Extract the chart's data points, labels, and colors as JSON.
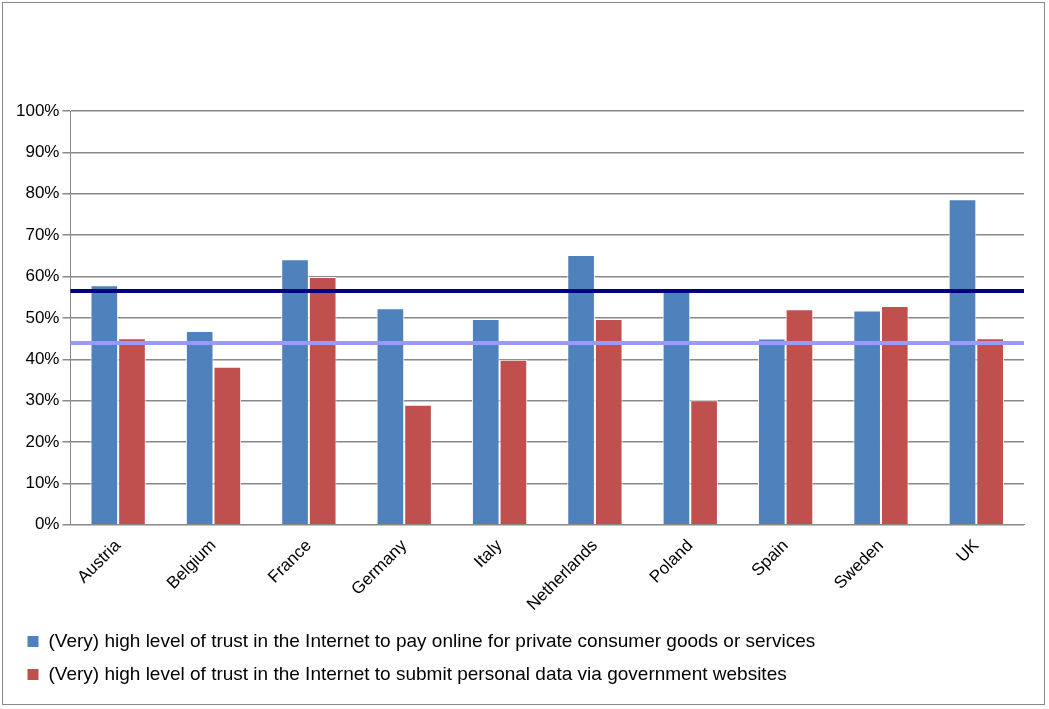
{
  "chart_data": {
    "type": "bar",
    "categories": [
      "Austria",
      "Belgium",
      "France",
      "Germany",
      "Italy",
      "Netherlands",
      "Poland",
      "Spain",
      "Sweden",
      "UK"
    ],
    "series": [
      {
        "name": "(Very) high level of trust in the Internet to pay online for private consumer goods or services",
        "color": "#4f81bd",
        "values": [
          57.9,
          46.8,
          64.2,
          52.3,
          49.7,
          65.2,
          56.5,
          45.0,
          51.8,
          78.7
        ]
      },
      {
        "name": "(Very) high level of trust in the Internet to submit personal data via government websites",
        "color": "#c0504d",
        "values": [
          45.1,
          38.2,
          59.9,
          29.0,
          39.9,
          49.7,
          30.1,
          52.1,
          52.9,
          45.1
        ]
      }
    ],
    "ylim": [
      0,
      100
    ],
    "yticks": [
      {
        "value": 0,
        "label": "0%"
      },
      {
        "value": 10,
        "label": "10%"
      },
      {
        "value": 20,
        "label": "20%"
      },
      {
        "value": 30,
        "label": "30%"
      },
      {
        "value": 40,
        "label": "40%"
      },
      {
        "value": 50,
        "label": "50%"
      },
      {
        "value": 60,
        "label": "60%"
      },
      {
        "value": 70,
        "label": "70%"
      },
      {
        "value": 80,
        "label": "80%"
      },
      {
        "value": 90,
        "label": "90%"
      },
      {
        "value": 100,
        "label": "100%"
      }
    ],
    "ref_lines": [
      {
        "axis": "y",
        "value": 56.5,
        "color": "#000080"
      },
      {
        "axis": "y",
        "value": 43.9,
        "color": "#9999ff"
      }
    ],
    "grid": "y",
    "legend": "bottom"
  }
}
